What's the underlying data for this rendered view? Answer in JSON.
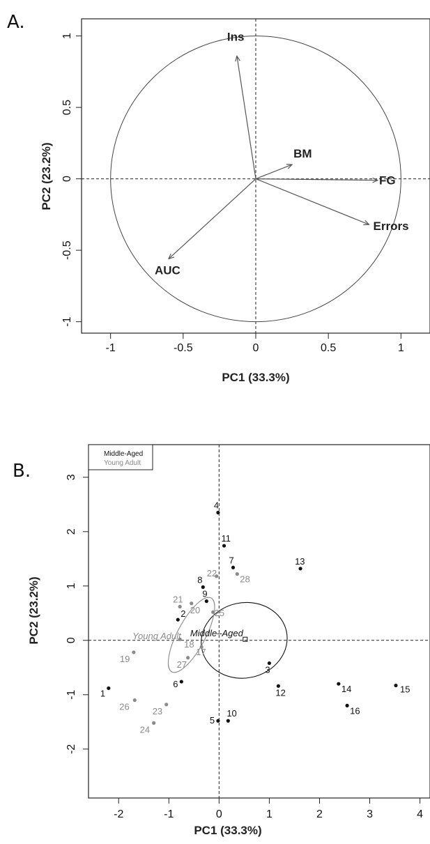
{
  "chart_data": [
    {
      "type": "scatter",
      "panel": "A.",
      "xlabel": "PC1 (33.3%)",
      "ylabel": "PC2 (23.2%)",
      "xlim": [
        -1.2,
        1.2
      ],
      "ylim": [
        -1.08,
        1.12
      ],
      "xticks": [
        -1,
        -0.5,
        0,
        0.5,
        1
      ],
      "xtick_labels": [
        "-1",
        "-0.5",
        "0",
        "0.5",
        "1"
      ],
      "yticks": [
        -1,
        -0.5,
        0,
        0.5,
        1
      ],
      "ytick_labels": [
        "-1",
        "-0.5",
        "0",
        "0.5",
        "1"
      ],
      "unit_circle": true,
      "vectors": [
        {
          "name": "Ins",
          "x": -0.13,
          "y": 0.86
        },
        {
          "name": "BM",
          "x": 0.25,
          "y": 0.1
        },
        {
          "name": "FG",
          "x": 0.84,
          "y": -0.01
        },
        {
          "name": "Errors",
          "x": 0.78,
          "y": -0.32
        },
        {
          "name": "AUC",
          "x": -0.6,
          "y": -0.56
        }
      ]
    },
    {
      "type": "scatter",
      "panel": "B.",
      "xlabel": "PC1 (33.3%)",
      "ylabel": "PC2 (23.2%)",
      "xlim": [
        -2.6,
        4.2
      ],
      "ylim": [
        -2.9,
        3.6
      ],
      "xticks": [
        -2,
        -1,
        0,
        1,
        2,
        3,
        4
      ],
      "xtick_labels": [
        "-2",
        "-1",
        "0",
        "1",
        "2",
        "3",
        "4"
      ],
      "yticks": [
        -2,
        -1,
        0,
        1,
        2,
        3
      ],
      "ytick_labels": [
        "-2",
        "-1",
        "0",
        "1",
        "2",
        "3"
      ],
      "legend": {
        "position": "top-left",
        "entries": [
          "Middle-Aged",
          "Young Adult"
        ]
      },
      "groups": [
        {
          "name": "Middle–Aged",
          "color": "#111111",
          "center": [
            0.52,
            0.02
          ]
        },
        {
          "name": "Young Adult",
          "color": "#8a8a8a",
          "center": [
            -0.55,
            0.1
          ]
        }
      ],
      "points": [
        {
          "label": "1",
          "x": -2.2,
          "y": -0.88,
          "group": 0
        },
        {
          "label": "2",
          "x": -0.82,
          "y": 0.38,
          "group": 0
        },
        {
          "label": "3",
          "x": 1.0,
          "y": -0.42,
          "group": 0
        },
        {
          "label": "4",
          "x": -0.02,
          "y": 2.35,
          "group": 0
        },
        {
          "label": "5",
          "x": -0.02,
          "y": -1.48,
          "group": 0
        },
        {
          "label": "6",
          "x": -0.75,
          "y": -0.76,
          "group": 0
        },
        {
          "label": "7",
          "x": 0.28,
          "y": 1.34,
          "group": 0
        },
        {
          "label": "8",
          "x": -0.32,
          "y": 0.98,
          "group": 0
        },
        {
          "label": "9",
          "x": -0.25,
          "y": 0.72,
          "group": 0
        },
        {
          "label": "10",
          "x": 0.18,
          "y": -1.48,
          "group": 0
        },
        {
          "label": "11",
          "x": 0.1,
          "y": 1.74,
          "group": 0
        },
        {
          "label": "12",
          "x": 1.18,
          "y": -0.84,
          "group": 0
        },
        {
          "label": "13",
          "x": 1.62,
          "y": 1.32,
          "group": 0
        },
        {
          "label": "14",
          "x": 2.38,
          "y": -0.8,
          "group": 0
        },
        {
          "label": "15",
          "x": 3.52,
          "y": -0.83,
          "group": 0
        },
        {
          "label": "16",
          "x": 2.55,
          "y": -1.2,
          "group": 0
        },
        {
          "label": "17",
          "x": -0.35,
          "y": -0.12,
          "group": 1
        },
        {
          "label": "18",
          "x": -0.78,
          "y": 0.02,
          "group": 1
        },
        {
          "label": "19",
          "x": -1.7,
          "y": -0.22,
          "group": 1
        },
        {
          "label": "20",
          "x": -0.55,
          "y": 0.68,
          "group": 1
        },
        {
          "label": "21",
          "x": -0.78,
          "y": 0.62,
          "group": 1
        },
        {
          "label": "22",
          "x": -0.05,
          "y": 1.18,
          "group": 1
        },
        {
          "label": "23",
          "x": -1.05,
          "y": -1.18,
          "group": 1
        },
        {
          "label": "24",
          "x": -1.3,
          "y": -1.52,
          "group": 1
        },
        {
          "label": "25",
          "x": -0.12,
          "y": 0.52,
          "group": 1
        },
        {
          "label": "26",
          "x": -1.68,
          "y": -1.1,
          "group": 1
        },
        {
          "label": "27",
          "x": -0.62,
          "y": -0.32,
          "group": 1
        },
        {
          "label": "28",
          "x": 0.36,
          "y": 1.22,
          "group": 1
        }
      ]
    }
  ]
}
